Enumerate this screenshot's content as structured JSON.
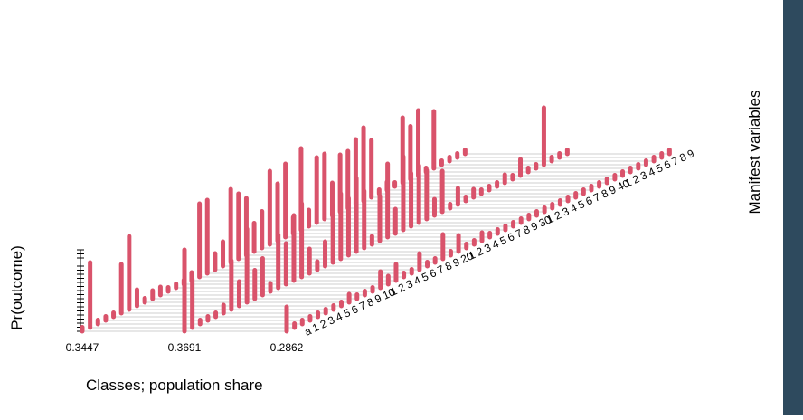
{
  "chart_data": {
    "type": "bar",
    "style": "3d-lcm-profile",
    "title": "",
    "xlabel": "Classes; population share",
    "ylabel": "Pr(outcome)",
    "zlabel": "Manifest variables",
    "classes": [
      "0.3447",
      "0.3691",
      "0.2862"
    ],
    "variable_labels": [
      "a",
      "1",
      "2",
      "3",
      "4",
      "5",
      "6",
      "7",
      "8",
      "9",
      "10",
      "1",
      "2",
      "3",
      "4",
      "5",
      "6",
      "7",
      "8",
      "9",
      "20",
      "1",
      "2",
      "3",
      "4",
      "5",
      "6",
      "7",
      "8",
      "9",
      "30",
      "1",
      "2",
      "3",
      "4",
      "5",
      "6",
      "7",
      "8",
      "9",
      "40",
      "1",
      "2",
      "3",
      "4",
      "5",
      "6",
      "7",
      "8",
      "9"
    ],
    "ylim": [
      0,
      1
    ],
    "bar_color": "#d9536b",
    "series": [
      {
        "name": "0.3447",
        "values": [
          0.05,
          0.8,
          0.05,
          0.05,
          0.05,
          0.6,
          0.9,
          0.2,
          0.05,
          0.1,
          0.1,
          0.05,
          0.05,
          0.05,
          0.1,
          0.9,
          0.9,
          0.2,
          0.3,
          0.9,
          0.8,
          0.7,
          0.35,
          0.45,
          0.9,
          0.7,
          0.9,
          0.2,
          1.0,
          0.2,
          0.8,
          0.8,
          0.4,
          0.7,
          0.7,
          0.8,
          0.9,
          0.7,
          0.05,
          0.1,
          0.05,
          0.8,
          0.65,
          0.8,
          0.05,
          0.7,
          0.05,
          0.05,
          0.05,
          0.05
        ]
      },
      {
        "name": "0.3691",
        "values": [
          1.0,
          0.6,
          0.05,
          0.05,
          0.05,
          0.1,
          0.6,
          0.3,
          0.9,
          0.35,
          0.45,
          0.1,
          0.65,
          0.5,
          0.8,
          0.9,
          0.3,
          0.1,
          0.3,
          0.7,
          0.8,
          0.7,
          0.9,
          0.7,
          0.1,
          0.55,
          0.9,
          0.3,
          0.9,
          0.65,
          0.7,
          0.6,
          0.2,
          0.5,
          0.05,
          0.2,
          0.05,
          0.1,
          0.05,
          0.05,
          0.05,
          0.1,
          0.05,
          0.2,
          0.05,
          0.05,
          0.7,
          0.05,
          0.05,
          0.05
        ]
      },
      {
        "name": "0.2862",
        "values": [
          0.3,
          0.05,
          0.05,
          0.05,
          0.05,
          0.05,
          0.05,
          0.05,
          0.1,
          0.05,
          0.05,
          0.05,
          0.2,
          0.1,
          0.2,
          0.05,
          0.05,
          0.2,
          0.05,
          0.05,
          0.3,
          0.05,
          0.2,
          0.05,
          0.05,
          0.1,
          0.05,
          0.05,
          0.05,
          0.05,
          0.05,
          0.05,
          0.05,
          0.05,
          0.05,
          0.05,
          0.05,
          0.05,
          0.05,
          0.05,
          0.05,
          0.05,
          0.05,
          0.05,
          0.05,
          0.05,
          0.05,
          0.05,
          0.05,
          0.05
        ]
      }
    ]
  }
}
